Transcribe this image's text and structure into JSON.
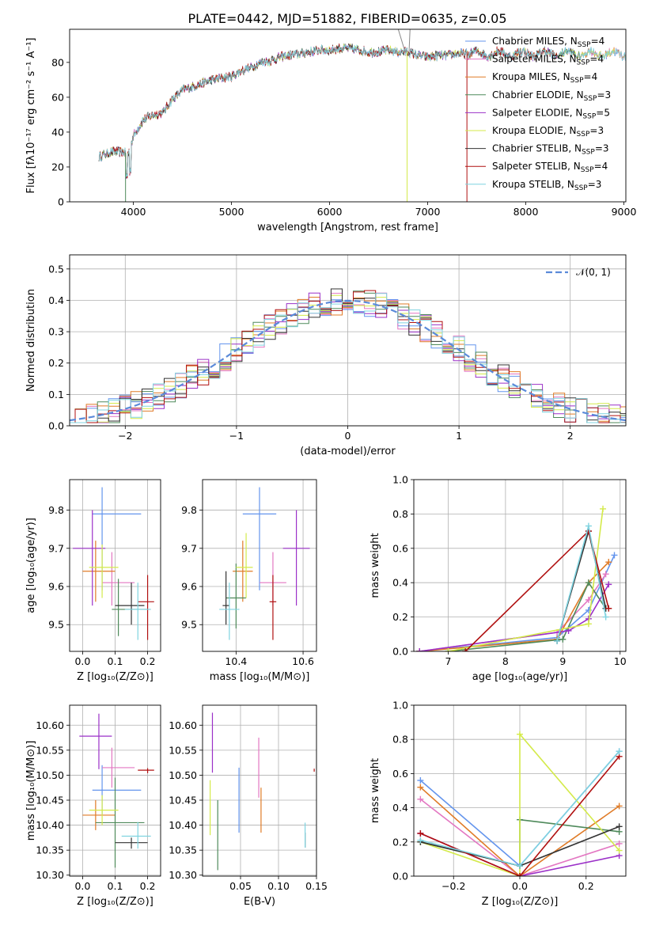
{
  "title": "PLATE=0442, MJD=51882, FIBERID=0635, z=0.05",
  "colors": {
    "chabrier_miles": "#6495ed",
    "salpeter_miles": "#e377c2",
    "kroupa_miles": "#e07b27",
    "chabrier_elodie": "#4f8a5b",
    "salpeter_elodie": "#9b30c8",
    "kroupa_elodie": "#d4ea4a",
    "chabrier_stelib": "#333333",
    "salpeter_stelib": "#b01010",
    "kroupa_stelib": "#7fd3e0",
    "normal_curve": "#5b8ad9",
    "grid": "#b0b0b0"
  },
  "chart_data": [
    {
      "type": "line",
      "panel": "spectrum",
      "xlabel": "wavelength [Angstrom, rest frame]",
      "ylabel": "Flux [fλ10⁻¹⁷ erg cm⁻² s⁻¹ A⁻¹]",
      "xlim": [
        3350,
        9020
      ],
      "ylim": [
        0,
        99
      ],
      "xticks": [
        "4000",
        "5000",
        "6000",
        "7000",
        "8000",
        "9000"
      ],
      "yticks": [
        "0",
        "20",
        "40",
        "60",
        "80"
      ],
      "grid": false,
      "legend_position": "right",
      "legend": [
        "Chabrier MILES, N_SSP=4",
        "Salpeter MILES, N_SSP=4",
        "Kroupa MILES, N_SSP=4",
        "Chabrier ELODIE, N_SSP=3",
        "Salpeter ELODIE, N_SSP=5",
        "Kroupa ELODIE, N_SSP=3",
        "Chabrier STELIB, N_SSP=3",
        "Salpeter STELIB, N_SSP=4",
        "Kroupa STELIB, N_SSP=3"
      ],
      "continuum": [
        [
          3650,
          26
        ],
        [
          3800,
          29
        ],
        [
          3950,
          28
        ],
        [
          4000,
          38
        ],
        [
          4100,
          47
        ],
        [
          4200,
          50
        ],
        [
          4300,
          51
        ],
        [
          4400,
          59
        ],
        [
          4500,
          64
        ],
        [
          4600,
          66
        ],
        [
          4700,
          68
        ],
        [
          4800,
          70
        ],
        [
          4900,
          71
        ],
        [
          5000,
          72
        ],
        [
          5100,
          75
        ],
        [
          5200,
          77
        ],
        [
          5300,
          80
        ],
        [
          5400,
          81
        ],
        [
          5500,
          83
        ],
        [
          5600,
          84
        ],
        [
          5700,
          85
        ],
        [
          5800,
          86
        ],
        [
          5900,
          87
        ],
        [
          6000,
          87
        ],
        [
          6100,
          88
        ],
        [
          6200,
          88
        ],
        [
          6300,
          87
        ],
        [
          6400,
          86
        ],
        [
          6500,
          86
        ],
        [
          6600,
          87
        ],
        [
          6700,
          86
        ],
        [
          6800,
          86
        ],
        [
          6900,
          84
        ],
        [
          7000,
          83
        ],
        [
          7100,
          84
        ],
        [
          7200,
          84
        ],
        [
          7300,
          85
        ],
        [
          7400,
          85
        ]
      ],
      "model_lengths": [
        9020,
        9020,
        9020,
        8560,
        8320,
        8900,
        8560,
        8320,
        9020
      ]
    },
    {
      "type": "area",
      "panel": "residual-histogram",
      "xlabel": "(data-model)/error",
      "ylabel": "Normed distribution",
      "xlim": [
        -2.5,
        2.5
      ],
      "ylim": [
        0,
        0.545
      ],
      "xticks": [
        "−2",
        "−1",
        "0",
        "1",
        "2"
      ],
      "yticks": [
        "0.0",
        "0.1",
        "0.2",
        "0.3",
        "0.4",
        "0.5"
      ],
      "grid": true,
      "legend": [
        "𝒩(0, 1)"
      ],
      "legend_position": "top-right",
      "bin_width": 0.1
    },
    {
      "type": "scatter",
      "panel": "age-vs-Z",
      "xlabel": "Z [log₁₀(Z/Z⊙)]",
      "ylabel": "age  [log₁₀(age/yr)]",
      "xlim": [
        -0.04,
        0.24
      ],
      "ylim": [
        9.43,
        9.88
      ],
      "xticks": [
        "0.0",
        "0.1",
        "0.2"
      ],
      "yticks": [
        "9.5",
        "9.6",
        "9.7",
        "9.8"
      ],
      "grid": true,
      "points": [
        {
          "x": 0.06,
          "y": 9.79,
          "xerr": [
            0.03,
            0.12
          ],
          "yerr": [
            0.2,
            0.07
          ]
        },
        {
          "x": 0.09,
          "y": 9.61,
          "xerr": [
            0.03,
            0.07
          ],
          "yerr": [
            0.06,
            0.08
          ]
        },
        {
          "x": 0.04,
          "y": 9.64,
          "xerr": [
            0.04,
            0.06
          ],
          "yerr": [
            0.08,
            0.08
          ]
        },
        {
          "x": 0.11,
          "y": 9.54,
          "xerr": [
            0.02,
            0.09
          ],
          "yerr": [
            0.07,
            0.08
          ]
        },
        {
          "x": 0.03,
          "y": 9.7,
          "xerr": [
            0.06,
            0.04
          ],
          "yerr": [
            0.15,
            0.1
          ]
        },
        {
          "x": 0.06,
          "y": 9.65,
          "xerr": [
            0.04,
            0.05
          ],
          "yerr": [
            0.08,
            0.06
          ]
        },
        {
          "x": 0.15,
          "y": 9.55,
          "xerr": [
            0.05,
            0.04
          ],
          "yerr": [
            0.05,
            0.06
          ]
        },
        {
          "x": 0.2,
          "y": 9.56,
          "xerr": [
            0.03,
            0.02
          ],
          "yerr": [
            0.1,
            0.07
          ]
        },
        {
          "x": 0.17,
          "y": 9.54,
          "xerr": [
            0.04,
            0.04
          ],
          "yerr": [
            0.08,
            0.07
          ]
        }
      ]
    },
    {
      "type": "scatter",
      "panel": "age-vs-mass",
      "xlabel": "mass [log₁₀(M/M⊙)]",
      "ylabel": "",
      "xlim": [
        10.3,
        10.64
      ],
      "ylim": [
        9.43,
        9.88
      ],
      "xticks": [
        "10.4",
        "10.6"
      ],
      "yticks": [
        "9.5",
        "9.6",
        "9.7",
        "9.8"
      ],
      "grid": true,
      "points": [
        {
          "x": 10.47,
          "y": 9.79,
          "xerr": [
            0.05,
            0.05
          ],
          "yerr": [
            0.2,
            0.07
          ]
        },
        {
          "x": 10.51,
          "y": 9.61,
          "xerr": [
            0.04,
            0.04
          ],
          "yerr": [
            0.06,
            0.08
          ]
        },
        {
          "x": 10.42,
          "y": 9.64,
          "xerr": [
            0.03,
            0.03
          ],
          "yerr": [
            0.08,
            0.08
          ]
        },
        {
          "x": 10.4,
          "y": 9.57,
          "xerr": [
            0.03,
            0.03
          ],
          "yerr": [
            0.08,
            0.09
          ]
        },
        {
          "x": 10.58,
          "y": 9.7,
          "xerr": [
            0.04,
            0.04
          ],
          "yerr": [
            0.15,
            0.1
          ]
        },
        {
          "x": 10.43,
          "y": 9.65,
          "xerr": [
            0.03,
            0.02
          ],
          "yerr": [
            0.08,
            0.09
          ]
        },
        {
          "x": 10.37,
          "y": 9.55,
          "xerr": [
            0.01,
            0.01
          ],
          "yerr": [
            0.05,
            0.09
          ]
        },
        {
          "x": 10.51,
          "y": 9.56,
          "xerr": [
            0.01,
            0.01
          ],
          "yerr": [
            0.1,
            0.07
          ]
        },
        {
          "x": 10.38,
          "y": 9.54,
          "xerr": [
            0.03,
            0.03
          ],
          "yerr": [
            0.08,
            0.07
          ]
        }
      ]
    },
    {
      "type": "line",
      "panel": "mass-weight-vs-age",
      "xlabel": "age  [log₁₀(age/yr)]",
      "ylabel": "mass weight",
      "xlim": [
        6.4,
        10.1
      ],
      "ylim": [
        0,
        1.0
      ],
      "xticks": [
        "7",
        "8",
        "9",
        "10"
      ],
      "yticks": [
        "0.0",
        "0.2",
        "0.4",
        "0.6",
        "0.8",
        "1.0"
      ],
      "grid": true,
      "series": [
        {
          "x": [
            6.5,
            8.9,
            9.45,
            9.9
          ],
          "y": [
            0.0,
            0.08,
            0.24,
            0.56
          ]
        },
        {
          "x": [
            6.5,
            8.9,
            9.45,
            9.75
          ],
          "y": [
            0.0,
            0.11,
            0.3,
            0.45
          ]
        },
        {
          "x": [
            6.5,
            8.9,
            9.45,
            9.8
          ],
          "y": [
            0.0,
            0.07,
            0.4,
            0.52
          ]
        },
        {
          "x": [
            7.0,
            9.0,
            9.45,
            9.75
          ],
          "y": [
            0.0,
            0.07,
            0.4,
            0.25
          ]
        },
        {
          "x": [
            6.5,
            9.1,
            9.45,
            9.8
          ],
          "y": [
            0.0,
            0.12,
            0.19,
            0.39
          ]
        },
        {
          "x": [
            7.0,
            9.45,
            9.7
          ],
          "y": [
            0.0,
            0.16,
            0.83
          ]
        },
        {
          "x": [
            8.9,
            9.45,
            9.75
          ],
          "y": [
            0.06,
            0.7,
            0.25
          ]
        },
        {
          "x": [
            7.3,
            9.45,
            9.8
          ],
          "y": [
            0.0,
            0.7,
            0.25
          ]
        },
        {
          "x": [
            8.9,
            9.45,
            9.75
          ],
          "y": [
            0.06,
            0.73,
            0.2
          ]
        }
      ]
    },
    {
      "type": "scatter",
      "panel": "mass-vs-Z",
      "xlabel": "Z [log₁₀(Z/Z⊙)]",
      "ylabel": "mass [log₁₀(M/M⊙)]",
      "xlim": [
        -0.04,
        0.24
      ],
      "ylim": [
        10.298,
        10.64
      ],
      "xticks": [
        "0.0",
        "0.1",
        "0.2"
      ],
      "yticks": [
        "10.30",
        "10.35",
        "10.40",
        "10.45",
        "10.50",
        "10.55",
        "10.60"
      ],
      "grid": true,
      "points": [
        {
          "x": 0.06,
          "y": 10.47,
          "xerr": [
            0.03,
            0.12
          ],
          "yerr": [
            0.05,
            0.05
          ]
        },
        {
          "x": 0.09,
          "y": 10.515,
          "xerr": [
            0.03,
            0.07
          ],
          "yerr": [
            0.04,
            0.04
          ]
        },
        {
          "x": 0.04,
          "y": 10.42,
          "xerr": [
            0.04,
            0.06
          ],
          "yerr": [
            0.03,
            0.03
          ]
        },
        {
          "x": 0.1,
          "y": 10.405,
          "xerr": [
            0.06,
            0.09
          ],
          "yerr": [
            0.09,
            0.09
          ]
        },
        {
          "x": 0.05,
          "y": 10.578,
          "xerr": [
            0.06,
            0.04
          ],
          "yerr": [
            0.066,
            0.045
          ]
        },
        {
          "x": 0.06,
          "y": 10.43,
          "xerr": [
            0.04,
            0.05
          ],
          "yerr": [
            0.03,
            0.03
          ]
        },
        {
          "x": 0.15,
          "y": 10.365,
          "xerr": [
            0.05,
            0.05
          ],
          "yerr": [
            0.012,
            0.01
          ]
        },
        {
          "x": 0.2,
          "y": 10.51,
          "xerr": [
            0.03,
            0.02
          ],
          "yerr": [
            0.006,
            0.004
          ]
        },
        {
          "x": 0.17,
          "y": 10.378,
          "xerr": [
            0.05,
            0.04
          ],
          "yerr": [
            0.025,
            0.028
          ]
        }
      ]
    },
    {
      "type": "scatter",
      "panel": "mass-vs-EBV",
      "xlabel": "E(B-V)",
      "ylabel": "",
      "xlim": [
        0.0,
        0.15
      ],
      "ylim": [
        10.298,
        10.64
      ],
      "xticks": [
        "0.05",
        "0.10",
        "0.15"
      ],
      "yticks": [
        "10.30",
        "10.35",
        "10.40",
        "10.45",
        "10.50",
        "10.55",
        "10.60"
      ],
      "grid": true,
      "points": [
        {
          "x": 0.048,
          "y": 10.45,
          "yerr": [
            0.065,
            0.065
          ]
        },
        {
          "x": 0.074,
          "y": 10.515,
          "yerr": [
            0.06,
            0.06
          ]
        },
        {
          "x": 0.077,
          "y": 10.43,
          "yerr": [
            0.045,
            0.045
          ]
        },
        {
          "x": 0.02,
          "y": 10.38,
          "yerr": [
            0.07,
            0.07
          ]
        },
        {
          "x": 0.013,
          "y": 10.565,
          "yerr": [
            0.06,
            0.06
          ]
        },
        {
          "x": 0.01,
          "y": 10.435,
          "yerr": [
            0.055,
            0.055
          ]
        },
        {
          "x": 0.135,
          "y": 10.37,
          "yerr": [
            0.015,
            0.015
          ]
        },
        {
          "x": 0.147,
          "y": 10.51,
          "yerr": [
            0.003,
            0.003
          ]
        },
        {
          "x": 0.135,
          "y": 10.38,
          "yerr": [
            0.025,
            0.025
          ]
        }
      ]
    },
    {
      "type": "line",
      "panel": "mass-weight-vs-Z",
      "xlabel": "Z [log₁₀(Z/Z⊙)]",
      "ylabel": "mass weight",
      "xlim": [
        -0.32,
        0.32
      ],
      "ylim": [
        0,
        1.0
      ],
      "xticks": [
        "−0.2",
        "0.0",
        "0.2"
      ],
      "yticks": [
        "0.0",
        "0.2",
        "0.4",
        "0.6",
        "0.8",
        "1.0"
      ],
      "grid": true,
      "series": [
        {
          "x": [
            -0.3,
            0.0,
            0.3
          ],
          "y": [
            0.56,
            0.06,
            0.73
          ]
        },
        {
          "x": [
            -0.3,
            0.0,
            0.3
          ],
          "y": [
            0.45,
            0.0,
            0.19
          ]
        },
        {
          "x": [
            -0.3,
            0.0,
            0.3
          ],
          "y": [
            0.52,
            0.0,
            0.41
          ]
        },
        {
          "x": [
            -0.3,
            0.0,
            0.0,
            0.3
          ],
          "y": [
            0.2,
            0.06,
            0.33,
            0.26
          ]
        },
        {
          "x": [
            -0.3,
            0.0,
            0.3
          ],
          "y": [
            0.25,
            0.0,
            0.12
          ]
        },
        {
          "x": [
            -0.3,
            0.0,
            0.0,
            0.3
          ],
          "y": [
            0.2,
            0.0,
            0.83,
            0.15
          ]
        },
        {
          "x": [
            -0.3,
            0.0,
            0.3
          ],
          "y": [
            0.2,
            0.06,
            0.29
          ]
        },
        {
          "x": [
            -0.3,
            0.0,
            0.3
          ],
          "y": [
            0.25,
            0.0,
            0.7
          ]
        },
        {
          "x": [
            -0.3,
            0.0,
            0.3
          ],
          "y": [
            0.21,
            0.06,
            0.73
          ]
        }
      ]
    }
  ]
}
